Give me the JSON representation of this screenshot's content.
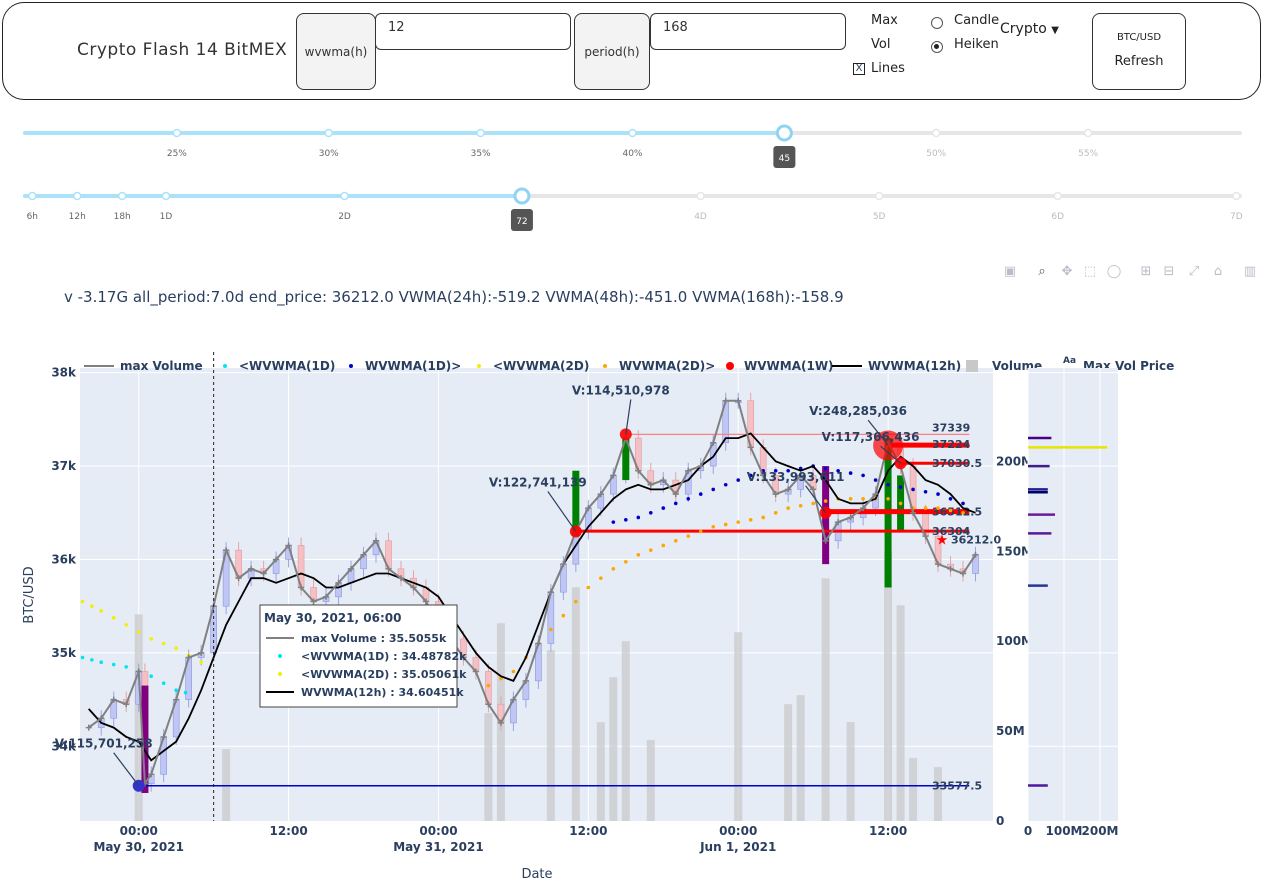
{
  "header": {
    "title": "Crypto Flash 14 BitMEX",
    "wvwma_label": "wvwma(h)",
    "wvwma_value": "12",
    "period_label": "period(h)",
    "period_value": "168",
    "max_label": "Max",
    "vol_label": "Vol",
    "lines_label": "Lines",
    "lines_checked": true,
    "candle_label": "Candle",
    "heiken_label": "Heiken",
    "chart_mode_selected": "Heiken",
    "dropdown_label": "Crypto",
    "pair_label": "BTC/USD",
    "refresh_label": "Refresh"
  },
  "slider1": {
    "marks": [
      "25%",
      "30%",
      "35%",
      "40%",
      "",
      "50%",
      "55%"
    ],
    "handle_label": "45",
    "value": 0.625
  },
  "slider2": {
    "marks": [
      "6h",
      "12h",
      "18h",
      "1D",
      "2D",
      "72",
      "4D",
      "5D",
      "6D",
      "7D"
    ],
    "handle_label": "72",
    "value": 0.409
  },
  "summary": "v -3.17G all_period:7.0d end_price: 36212.0 VWMA(24h):-519.2 VWMA(48h):-451.0 VWMA(168h):-158.9",
  "modebar": [
    "camera-icon",
    "zoom-icon",
    "pan-icon",
    "select-icon",
    "lasso-icon",
    "zoom-in-icon",
    "zoom-out-icon",
    "autoscale-icon",
    "reset-icon",
    "plotly-logo"
  ],
  "chart_data": {
    "type": "line",
    "xlabel": "Date",
    "ylabel": "BTC/USD",
    "x_ticks": [
      {
        "t": 24,
        "label": "00:00",
        "date": "May 30, 2021"
      },
      {
        "t": 36,
        "label": "12:00"
      },
      {
        "t": 48,
        "label": "00:00",
        "date": "May 31, 2021"
      },
      {
        "t": 60,
        "label": "12:00"
      },
      {
        "t": 72,
        "label": "00:00",
        "date": "Jun 1, 2021"
      },
      {
        "t": 84,
        "label": "12:00"
      }
    ],
    "x_range": [
      19.3,
      92.4
    ],
    "y_ticks": [
      "34k",
      "35k",
      "36k",
      "37k",
      "38k"
    ],
    "y_range": [
      33200,
      38050
    ],
    "y2_ticks": [
      "0",
      "50M",
      "100M",
      "150M",
      "200M"
    ],
    "y2_range": [
      0,
      252
    ],
    "volprofile_ticks": [
      "0",
      "100M",
      "200M"
    ],
    "legend": [
      "max Volume",
      "<WVWMA(1D)",
      "WVWMA(1D)>",
      "<WVWMA(2D)",
      "WVWMA(2D)>",
      "WVWMA(1W)",
      "WVWMA(12h)",
      "Volume",
      "Max Vol Price"
    ],
    "legend_extra": "Aa",
    "max_volume": [
      [
        20,
        34200
      ],
      [
        21,
        34300
      ],
      [
        22,
        34500
      ],
      [
        23,
        34450
      ],
      [
        24,
        34800
      ],
      [
        24.5,
        33600
      ],
      [
        25,
        33700
      ],
      [
        26,
        34100
      ],
      [
        27,
        34500
      ],
      [
        28,
        34950
      ],
      [
        29,
        35000
      ],
      [
        30,
        35500
      ],
      [
        31,
        36100
      ],
      [
        32,
        35800
      ],
      [
        33,
        35900
      ],
      [
        34,
        35850
      ],
      [
        35,
        36000
      ],
      [
        36,
        36150
      ],
      [
        37,
        35700
      ],
      [
        38,
        35550
      ],
      [
        39,
        35600
      ],
      [
        40,
        35750
      ],
      [
        41,
        35900
      ],
      [
        42,
        36050
      ],
      [
        43,
        36200
      ],
      [
        44,
        35900
      ],
      [
        45,
        35800
      ],
      [
        46,
        35700
      ],
      [
        47,
        35550
      ],
      [
        48,
        35300
      ],
      [
        49,
        35150
      ],
      [
        50,
        34950
      ],
      [
        51,
        34800
      ],
      [
        52,
        34450
      ],
      [
        53,
        34250
      ],
      [
        54,
        34500
      ],
      [
        55,
        34700
      ],
      [
        56,
        35100
      ],
      [
        57,
        35650
      ],
      [
        58,
        35950
      ],
      [
        59,
        36300
      ],
      [
        60,
        36550
      ],
      [
        61,
        36700
      ],
      [
        62,
        36900
      ],
      [
        63,
        37300
      ],
      [
        64,
        36950
      ],
      [
        65,
        36800
      ],
      [
        66,
        36850
      ],
      [
        67,
        36700
      ],
      [
        68,
        36950
      ],
      [
        69,
        37000
      ],
      [
        70,
        37250
      ],
      [
        71,
        37700
      ],
      [
        72,
        37700
      ],
      [
        73,
        37200
      ],
      [
        74,
        36900
      ],
      [
        75,
        36700
      ],
      [
        76,
        36750
      ],
      [
        77,
        36900
      ],
      [
        78,
        36750
      ],
      [
        79,
        36200
      ],
      [
        80,
        36400
      ],
      [
        81,
        36450
      ],
      [
        82,
        36550
      ],
      [
        83,
        36700
      ],
      [
        84,
        37250
      ],
      [
        85,
        37000
      ],
      [
        86,
        36500
      ],
      [
        87,
        36250
      ],
      [
        88,
        35950
      ],
      [
        89,
        35900
      ],
      [
        90,
        35850
      ],
      [
        91,
        36050
      ]
    ],
    "wvwma_12h": [
      [
        20,
        34400
      ],
      [
        21,
        34250
      ],
      [
        22,
        34200
      ],
      [
        23,
        34100
      ],
      [
        24,
        34050
      ],
      [
        25,
        33850
      ],
      [
        26,
        33950
      ],
      [
        27,
        34050
      ],
      [
        28,
        34300
      ],
      [
        29,
        34600
      ],
      [
        30,
        34950
      ],
      [
        31,
        35300
      ],
      [
        32,
        35550
      ],
      [
        33,
        35800
      ],
      [
        34,
        35800
      ],
      [
        35,
        35750
      ],
      [
        36,
        35800
      ],
      [
        37,
        35850
      ],
      [
        38,
        35800
      ],
      [
        39,
        35700
      ],
      [
        40,
        35700
      ],
      [
        41,
        35750
      ],
      [
        42,
        35800
      ],
      [
        43,
        35850
      ],
      [
        44,
        35850
      ],
      [
        45,
        35800
      ],
      [
        46,
        35750
      ],
      [
        47,
        35700
      ],
      [
        48,
        35600
      ],
      [
        49,
        35400
      ],
      [
        50,
        35200
      ],
      [
        51,
        35000
      ],
      [
        52,
        34850
      ],
      [
        53,
        34750
      ],
      [
        54,
        34700
      ],
      [
        55,
        34950
      ],
      [
        56,
        35300
      ],
      [
        57,
        35650
      ],
      [
        58,
        35950
      ],
      [
        59,
        36150
      ],
      [
        60,
        36350
      ],
      [
        61,
        36500
      ],
      [
        62,
        36650
      ],
      [
        63,
        36750
      ],
      [
        64,
        36800
      ],
      [
        65,
        36750
      ],
      [
        66,
        36750
      ],
      [
        67,
        36800
      ],
      [
        68,
        36850
      ],
      [
        69,
        37000
      ],
      [
        70,
        37100
      ],
      [
        71,
        37300
      ],
      [
        72,
        37300
      ],
      [
        73,
        37350
      ],
      [
        74,
        37200
      ],
      [
        75,
        37050
      ],
      [
        76,
        37000
      ],
      [
        77,
        36950
      ],
      [
        78,
        37000
      ],
      [
        79,
        36850
      ],
      [
        80,
        36650
      ],
      [
        81,
        36600
      ],
      [
        82,
        36600
      ],
      [
        83,
        36650
      ],
      [
        84,
        36950
      ],
      [
        85,
        37100
      ],
      [
        86,
        37000
      ],
      [
        87,
        36850
      ],
      [
        88,
        36800
      ],
      [
        89,
        36700
      ],
      [
        90,
        36550
      ],
      [
        91,
        36500
      ]
    ],
    "lt_wvwma_1d": [
      [
        19.5,
        34950
      ],
      [
        21,
        34900
      ],
      [
        23,
        34850
      ],
      [
        25,
        34750
      ],
      [
        27,
        34600
      ],
      [
        28.5,
        34550
      ]
    ],
    "wvwma_1d_gt": [
      [
        62,
        36400
      ],
      [
        64,
        36450
      ],
      [
        66,
        36550
      ],
      [
        68,
        36650
      ],
      [
        70,
        36750
      ],
      [
        72,
        36850
      ],
      [
        74,
        36950
      ],
      [
        76,
        36950
      ],
      [
        78,
        37000
      ],
      [
        80,
        36950
      ],
      [
        82,
        36900
      ],
      [
        84,
        36800
      ],
      [
        86,
        36750
      ],
      [
        88,
        36700
      ],
      [
        90,
        36600
      ],
      [
        91,
        36550
      ]
    ],
    "lt_wvwma_2d": [
      [
        19.5,
        35550
      ],
      [
        21,
        35450
      ],
      [
        23,
        35300
      ],
      [
        25,
        35150
      ],
      [
        27,
        35050
      ],
      [
        29,
        34900
      ],
      [
        30,
        34800
      ]
    ],
    "wvwma_2d_gt": [
      [
        52,
        34650
      ],
      [
        54,
        34800
      ],
      [
        56,
        35100
      ],
      [
        58,
        35400
      ],
      [
        60,
        35700
      ],
      [
        62,
        35900
      ],
      [
        64,
        36050
      ],
      [
        66,
        36150
      ],
      [
        68,
        36250
      ],
      [
        70,
        36350
      ],
      [
        72,
        36400
      ],
      [
        74,
        36450
      ],
      [
        76,
        36550
      ],
      [
        78,
        36600
      ],
      [
        80,
        36650
      ],
      [
        82,
        36650
      ],
      [
        84,
        36650
      ],
      [
        86,
        36550
      ],
      [
        88,
        36550
      ],
      [
        90,
        36500
      ],
      [
        91,
        36450
      ]
    ],
    "wvwma_1w": [
      [
        59,
        36300
      ],
      [
        63,
        37340
      ],
      [
        79,
        36500
      ],
      [
        85,
        37030
      ],
      [
        84,
        37220
      ]
    ],
    "volume_bars": [
      [
        24,
        115
      ],
      [
        31,
        40
      ],
      [
        52,
        60
      ],
      [
        53,
        110
      ],
      [
        57,
        95
      ],
      [
        59,
        130
      ],
      [
        61,
        55
      ],
      [
        62,
        80
      ],
      [
        63,
        100
      ],
      [
        65,
        45
      ],
      [
        72,
        105
      ],
      [
        76,
        65
      ],
      [
        77,
        70
      ],
      [
        79,
        135
      ],
      [
        81,
        55
      ],
      [
        84,
        150
      ],
      [
        85,
        120
      ],
      [
        86,
        35
      ],
      [
        88,
        30
      ]
    ],
    "max_vol_price_levels": [
      {
        "y": 37339,
        "label": "37339"
      },
      {
        "y": 37224,
        "label": "37224"
      },
      {
        "y": 37030.5,
        "label": "37030.5"
      },
      {
        "y": 36512.5,
        "label": "36512.5"
      },
      {
        "y": 36304,
        "label": "36304"
      },
      {
        "y": 36212,
        "label": "36212.0"
      },
      {
        "y": 33577.5,
        "label": "33577.5"
      }
    ],
    "annotations": [
      {
        "t": 24,
        "y": 33577.5,
        "text": "V:115,701,258"
      },
      {
        "t": 59,
        "y": 36300,
        "text": "V:122,741,139"
      },
      {
        "t": 63,
        "y": 37339,
        "text": "V:114,510,978"
      },
      {
        "t": 79,
        "y": 36500,
        "text": "V:133,993,611"
      },
      {
        "t": 84,
        "y": 37224,
        "text": "V:248,285,036"
      },
      {
        "t": 85,
        "y": 37030.5,
        "text": "V:117,366,436"
      }
    ],
    "hover": {
      "t": 30,
      "title": "May 30, 2021, 06:00",
      "rows": [
        {
          "name": "max Volume",
          "value": "35.5055k"
        },
        {
          "name": "<WVWMA(1D)",
          "value": "34.48782k"
        },
        {
          "name": "<WVWMA(2D)",
          "value": "35.05061k"
        },
        {
          "name": "WVWMA(12h)",
          "value": "34.60451k"
        }
      ]
    },
    "volume_profile": [
      {
        "y": 37300,
        "v": 65,
        "color": "#4b0082"
      },
      {
        "y": 37200,
        "v": 220,
        "color": "#e6e600"
      },
      {
        "y": 37000,
        "v": 60,
        "color": "#3c1e8c"
      },
      {
        "y": 36750,
        "v": 55,
        "color": "#1e1e8c"
      },
      {
        "y": 36720,
        "v": 55,
        "color": "#000066"
      },
      {
        "y": 36480,
        "v": 75,
        "color": "#6a1b9a"
      },
      {
        "y": 36280,
        "v": 65,
        "color": "#5a1a9a"
      },
      {
        "y": 35720,
        "v": 55,
        "color": "#283593"
      },
      {
        "y": 33580,
        "v": 55,
        "color": "#4b1a9a"
      }
    ],
    "colors": {
      "max_volume": "#808080",
      "lt_wvwma_1d": "#00e5ee",
      "wvwma_1d_gt": "#0000cd",
      "lt_wvwma_2d": "#f0f000",
      "wvwma_2d_gt": "#ffa500",
      "wvwma_1w": "#ff0000",
      "wvwma_12h": "#000000",
      "volume": "#c8c8c8",
      "plot_bg": "#e5ecf6"
    }
  }
}
